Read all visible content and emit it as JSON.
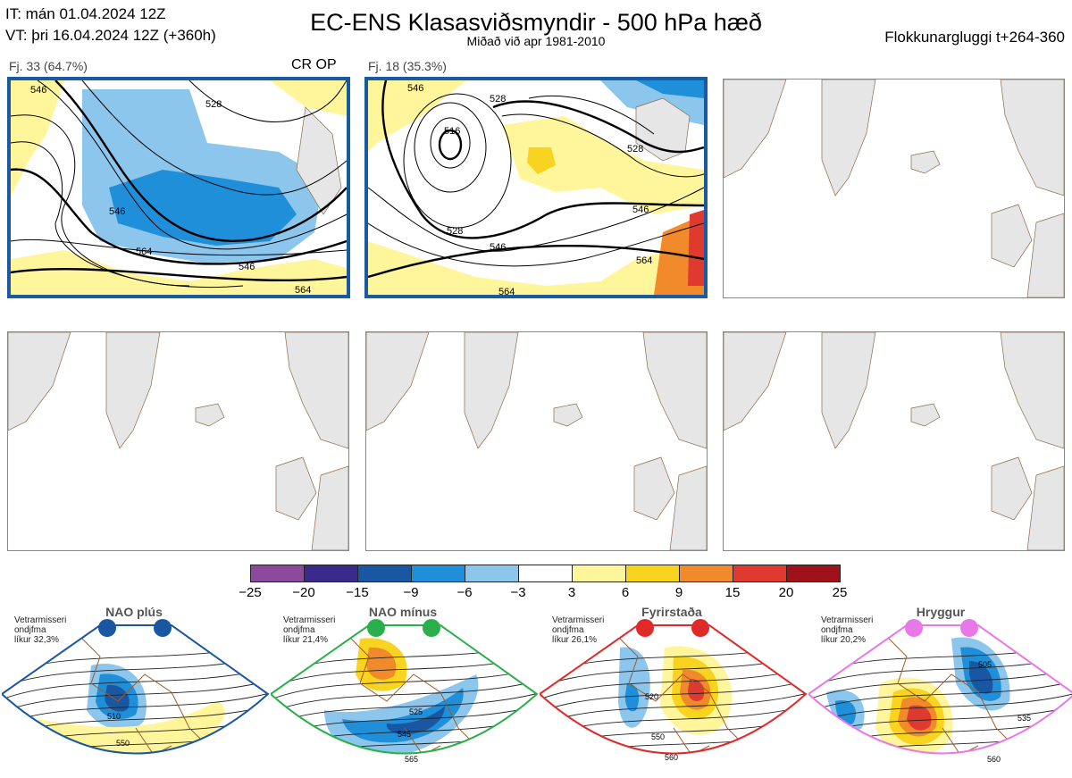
{
  "header": {
    "it_line": "IT: mán 01.04.2024 12Z",
    "vt_line": "VT: þri 16.04.2024 12Z  (+360h)",
    "title": "EC-ENS Klasasviðsmyndir - 500 hPa hæð",
    "subtitle": "Miðað við apr 1981-2010",
    "window": "Flokkunargluggi t+264-360"
  },
  "panels": [
    {
      "label": "Fj. 33 (64.7%)",
      "tag": "CR OP",
      "highlighted": true,
      "contour_labels": [
        "546",
        "528",
        "546",
        "564",
        "546",
        "564"
      ]
    },
    {
      "label": "Fj. 18 (35.3%)",
      "tag": "",
      "highlighted": true,
      "contour_labels": [
        "546",
        "528",
        "516",
        "528",
        "546",
        "528",
        "546",
        "564",
        "564"
      ]
    }
  ],
  "colorbar": {
    "ticks": [
      "−25",
      "−20",
      "−15",
      "−9",
      "−6",
      "−3",
      "3",
      "6",
      "9",
      "15",
      "20",
      "25"
    ],
    "colors": [
      "#8b4a9c",
      "#3a2a8c",
      "#1a57a3",
      "#1e8fd8",
      "#8cc6ec",
      "#ffffff",
      "#fff59a",
      "#f8d31f",
      "#f08a2a",
      "#e03a30",
      "#a0121a"
    ]
  },
  "climate": [
    {
      "title": "NAO plús",
      "prob": [
        "Vetrarmisseri",
        "ondjfma",
        "líkur 32,3%"
      ],
      "color": "#1a57a3",
      "labels": [
        "510",
        "550"
      ]
    },
    {
      "title": "NAO mínus",
      "prob": [
        "Vetrarmisseri",
        "ondjfma",
        "líkur 21,4%"
      ],
      "color": "#2ab04a",
      "labels": [
        "525",
        "545",
        "565"
      ]
    },
    {
      "title": "Fyrirstaða",
      "prob": [
        "Vetrarmisseri",
        "ondjfma",
        "líkur 26,1%"
      ],
      "color": "#e02a2a",
      "labels": [
        "520",
        "550",
        "560"
      ]
    },
    {
      "title": "Hryggur",
      "prob": [
        "Vetrarmisseri",
        "ondjfma",
        "líkur 20,2%"
      ],
      "color": "#e878e8",
      "labels": [
        "505",
        "535",
        "560"
      ]
    }
  ]
}
